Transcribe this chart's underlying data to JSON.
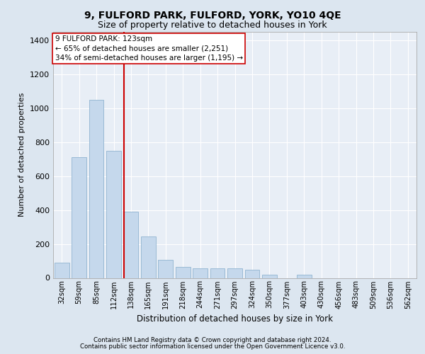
{
  "title1": "9, FULFORD PARK, FULFORD, YORK, YO10 4QE",
  "title2": "Size of property relative to detached houses in York",
  "xlabel": "Distribution of detached houses by size in York",
  "ylabel": "Number of detached properties",
  "footer1": "Contains HM Land Registry data © Crown copyright and database right 2024.",
  "footer2": "Contains public sector information licensed under the Open Government Licence v3.0.",
  "annotation_line1": "9 FULFORD PARK: 123sqm",
  "annotation_line2": "← 65% of detached houses are smaller (2,251)",
  "annotation_line3": "34% of semi-detached houses are larger (1,195) →",
  "bar_color": "#c5d8ec",
  "bar_edge_color": "#90b4d0",
  "vline_color": "#cc0000",
  "categories": [
    "32sqm",
    "59sqm",
    "85sqm",
    "112sqm",
    "138sqm",
    "165sqm",
    "191sqm",
    "218sqm",
    "244sqm",
    "271sqm",
    "297sqm",
    "324sqm",
    "350sqm",
    "377sqm",
    "403sqm",
    "430sqm",
    "456sqm",
    "483sqm",
    "509sqm",
    "536sqm",
    "562sqm"
  ],
  "values": [
    90,
    710,
    1050,
    750,
    390,
    245,
    105,
    65,
    55,
    55,
    55,
    50,
    20,
    0,
    20,
    0,
    0,
    0,
    0,
    0,
    0
  ],
  "ylim": [
    0,
    1450
  ],
  "yticks": [
    0,
    200,
    400,
    600,
    800,
    1000,
    1200,
    1400
  ],
  "background_color": "#dce6f0",
  "plot_bg_color": "#e8eef6",
  "vline_pos": 3.575,
  "annot_fontsize": 7.5,
  "title1_fontsize": 10,
  "title2_fontsize": 9,
  "ylabel_fontsize": 8,
  "xlabel_fontsize": 8.5,
  "footer_fontsize": 6.2
}
